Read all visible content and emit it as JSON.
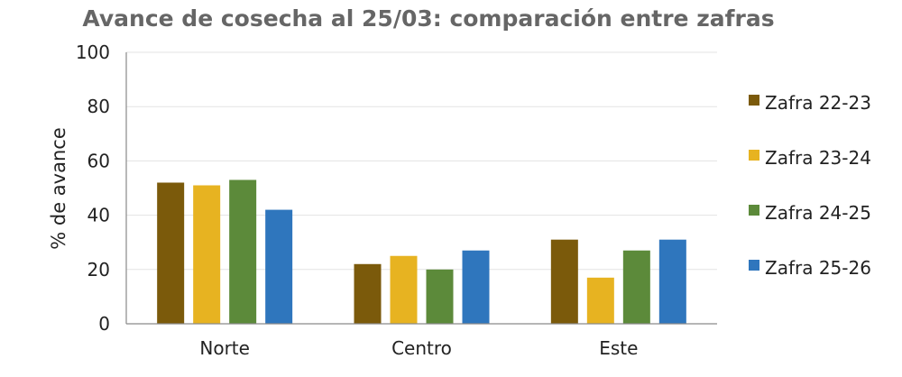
{
  "chart_data": {
    "type": "bar",
    "title": "Avance de cosecha al 25/03: comparación entre zafras",
    "xlabel": "",
    "ylabel": "% de avance",
    "ylim": [
      0,
      100
    ],
    "yticks": [
      0,
      20,
      40,
      60,
      80,
      100
    ],
    "grid": true,
    "legend_position": "right",
    "categories": [
      "Norte",
      "Centro",
      "Este"
    ],
    "series": [
      {
        "name": "Zafra 22-23",
        "color": "#7b5a0b",
        "values": [
          52,
          22,
          31
        ]
      },
      {
        "name": "Zafra 23-24",
        "color": "#e7b321",
        "values": [
          51,
          25,
          17
        ]
      },
      {
        "name": "Zafra 24-25",
        "color": "#5c8a3a",
        "values": [
          53,
          20,
          27
        ]
      },
      {
        "name": "Zafra 25-26",
        "color": "#2f76bd",
        "values": [
          42,
          27,
          31
        ]
      }
    ]
  }
}
